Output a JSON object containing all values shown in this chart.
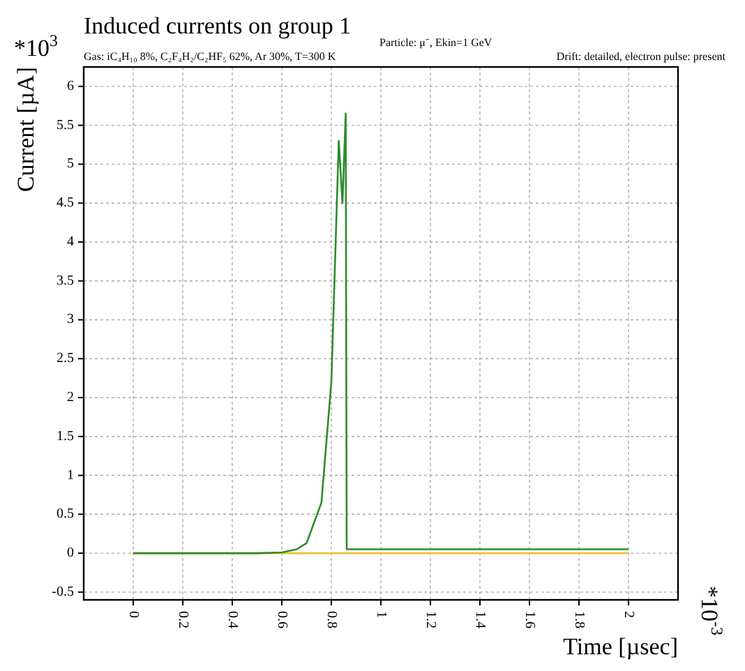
{
  "chart_data": {
    "type": "line",
    "title": "Induced currents on group 1",
    "annotations": [
      "Particle: μ⁻, Ekin=1 GeV",
      "Gas: iC₄H₁₀ 8%, C₂F₄H₂/C₂HF₅ 62%, Ar 30%, T=300 K",
      "Drift: detailed, electron pulse: present",
      "*10$^{3}$",
      "*10$^{-3}$"
    ],
    "xlabel": "Time [µsec]",
    "ylabel": "Current [µA]",
    "series": [
      {
        "color": "#f0c030",
        "x": [
          0,
          2
        ],
        "values": [
          0,
          0
        ]
      },
      {
        "color": "#2e8b2e",
        "x": [
          0,
          0.5,
          0.6,
          0.66,
          0.7,
          0.76,
          0.8,
          0.83,
          0.845,
          0.858,
          0.862,
          2
        ],
        "values": [
          0,
          0,
          0.01,
          0.05,
          0.13,
          0.65,
          2.2,
          5.3,
          4.5,
          5.65,
          0.05,
          0.05
        ]
      }
    ],
    "xlim": [
      -0.2,
      2.2
    ],
    "xticks": [
      0,
      0.2,
      0.4,
      0.6,
      0.8,
      1,
      1.2,
      1.4,
      1.6,
      1.8,
      2
    ],
    "ylim": [
      -0.6,
      6.25
    ],
    "yticks": [
      -0.5,
      0,
      0.5,
      1,
      1.5,
      2,
      2.5,
      3,
      3.5,
      4,
      4.5,
      5,
      5.5,
      6
    ],
    "grid": true,
    "marker": "none",
    "line_style": "solid"
  }
}
